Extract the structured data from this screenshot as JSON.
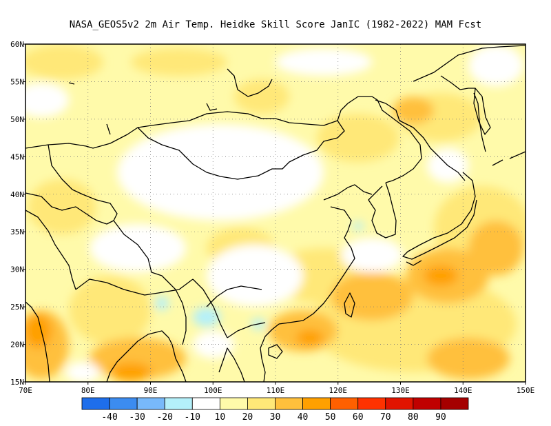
{
  "title": "NASA_GEOS5v2  2m Air Temp. Heidke Skill Score JanIC (1982-2022) MAM Fcst",
  "map": {
    "projection": "lat-lon",
    "lon_range": [
      70,
      150
    ],
    "lat_range": [
      15,
      60
    ],
    "lon_ticks": [
      {
        "value": 70,
        "label": "70E"
      },
      {
        "value": 80,
        "label": "80E"
      },
      {
        "value": 90,
        "label": "90E"
      },
      {
        "value": 100,
        "label": "100E"
      },
      {
        "value": 110,
        "label": "110E"
      },
      {
        "value": 120,
        "label": "120E"
      },
      {
        "value": 130,
        "label": "130E"
      },
      {
        "value": 140,
        "label": "140E"
      },
      {
        "value": 150,
        "label": "150E"
      }
    ],
    "lat_ticks": [
      {
        "value": 15,
        "label": "15N"
      },
      {
        "value": 20,
        "label": "20N"
      },
      {
        "value": 25,
        "label": "25N"
      },
      {
        "value": 30,
        "label": "30N"
      },
      {
        "value": 35,
        "label": "35N"
      },
      {
        "value": 40,
        "label": "40N"
      },
      {
        "value": 45,
        "label": "45N"
      },
      {
        "value": 50,
        "label": "50N"
      },
      {
        "value": 55,
        "label": "55N"
      },
      {
        "value": 60,
        "label": "60N"
      }
    ],
    "grid": "dotted"
  },
  "colorbar": {
    "colors": [
      "#1e6eeb",
      "#3c8cf0",
      "#78b9fa",
      "#b4f0fa",
      "#ffffff",
      "#fffaaa",
      "#ffe878",
      "#ffc03c",
      "#ffa000",
      "#ff6000",
      "#ff3200",
      "#e11400",
      "#c00000",
      "#a50000"
    ],
    "labels": [
      "-40",
      "-30",
      "-20",
      "-10",
      "10",
      "20",
      "30",
      "40",
      "50",
      "60",
      "70",
      "80",
      "90"
    ]
  }
}
